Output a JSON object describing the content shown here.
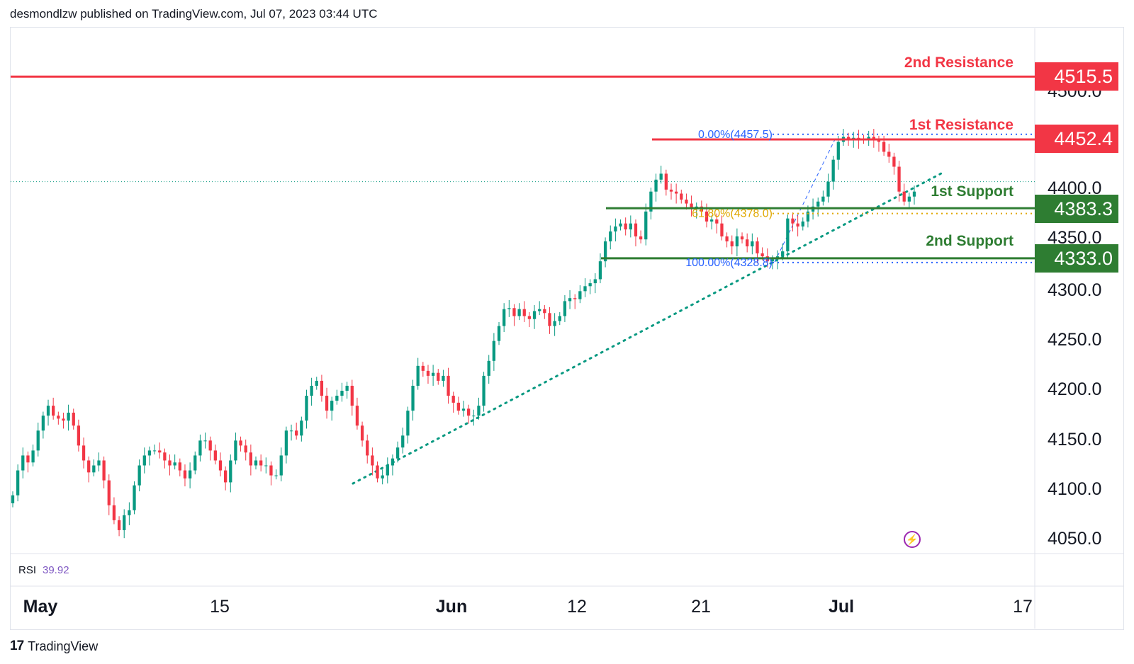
{
  "header": {
    "publisher_line": "desmondlzw published on TradingView.com, Jul 07, 2023 03:44 UTC"
  },
  "footer": {
    "brand": "TradingView",
    "logo_mark": "17"
  },
  "rsi": {
    "label": "RSI",
    "value": "39.92"
  },
  "colors": {
    "up": "#089981",
    "down": "#f23645",
    "resistance": "#f23645",
    "support": "#2e7d32",
    "fib": "#2962ff",
    "fib_618": "#e0a800",
    "trendline": "#089981",
    "rsi_accent": "#7e57c2"
  },
  "chart_data": {
    "type": "candlestick",
    "title": "",
    "x_axis_ticks": [
      "May",
      "15",
      "Jun",
      "12",
      "21",
      "Jul",
      "17"
    ],
    "y_axis_ticks": [
      "4500.0",
      "4400.0",
      "4350.0",
      "4300.0",
      "4250.0",
      "4200.0",
      "4150.0",
      "4100.0",
      "4050.0"
    ],
    "y_range": [
      4030,
      4560
    ],
    "levels": [
      {
        "name": "2nd Resistance",
        "value": 4515.5,
        "badge": "4515.5",
        "kind": "resistance"
      },
      {
        "name": "1st Resistance",
        "value": 4452.4,
        "badge": "4452.4",
        "kind": "resistance"
      },
      {
        "name": "1st Support",
        "value": 4383.3,
        "badge": "4383.3",
        "kind": "support"
      },
      {
        "name": "2nd Support",
        "value": 4333.0,
        "badge": "4333.0",
        "kind": "support"
      }
    ],
    "fibonacci": [
      {
        "label": "0.00%(4457.5)",
        "value": 4457.5
      },
      {
        "label": "61.80%(4378.0)",
        "value": 4378.0
      },
      {
        "label": "100.00%(4328.8)",
        "value": 4328.8
      }
    ],
    "last_price_line": 4410,
    "candles_close": [
      4095,
      4120,
      4135,
      4128,
      4140,
      4160,
      4175,
      4185,
      4175,
      4172,
      4170,
      4178,
      4165,
      4145,
      4130,
      4118,
      4125,
      4130,
      4110,
      4085,
      4070,
      4060,
      4075,
      4080,
      4105,
      4125,
      4135,
      4140,
      4140,
      4138,
      4130,
      4125,
      4128,
      4120,
      4112,
      4120,
      4135,
      4150,
      4150,
      4140,
      4130,
      4120,
      4108,
      4130,
      4150,
      4145,
      4138,
      4125,
      4130,
      4125,
      4125,
      4115,
      4115,
      4135,
      4160,
      4160,
      4155,
      4170,
      4195,
      4205,
      4210,
      4195,
      4180,
      4190,
      4195,
      4200,
      4205,
      4185,
      4165,
      4150,
      4135,
      4125,
      4112,
      4115,
      4125,
      4132,
      4143,
      4155,
      4180,
      4205,
      4225,
      4220,
      4215,
      4218,
      4210,
      4215,
      4195,
      4188,
      4180,
      4182,
      4175,
      4175,
      4185,
      4215,
      4230,
      4250,
      4265,
      4282,
      4283,
      4275,
      4282,
      4275,
      4272,
      4280,
      4282,
      4278,
      4265,
      4270,
      4275,
      4290,
      4293,
      4292,
      4300,
      4305,
      4308,
      4312,
      4330,
      4350,
      4360,
      4365,
      4368,
      4362,
      4368,
      4355,
      4352,
      4380,
      4400,
      4412,
      4418,
      4402,
      4400,
      4398,
      4392,
      4388,
      4383,
      4385,
      4380,
      4370,
      4372,
      4368,
      4355,
      4350,
      4345,
      4355,
      4352,
      4345,
      4350,
      4338,
      4335,
      4330,
      4332,
      4335,
      4340,
      4373,
      4368,
      4365,
      4370,
      4380,
      4385,
      4390,
      4395,
      4410,
      4432,
      4450,
      4455,
      4452,
      4454,
      4453,
      4452,
      4455,
      4452,
      4450,
      4440,
      4435,
      4425,
      4400,
      4390,
      4395,
      4400
    ]
  }
}
